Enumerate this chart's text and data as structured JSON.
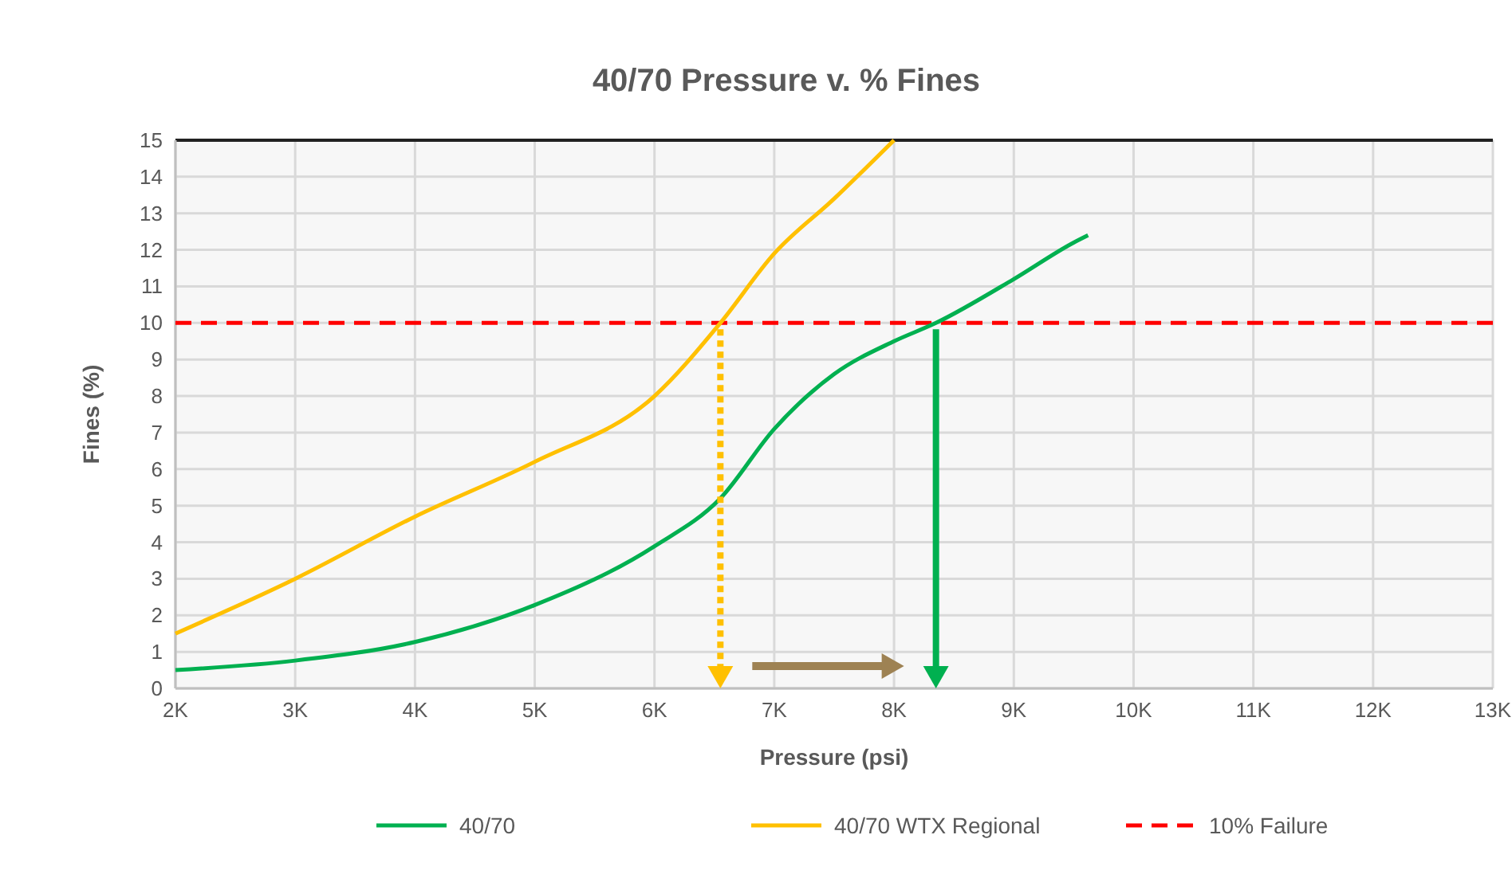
{
  "chart_data": {
    "type": "line",
    "title": "40/70 Pressure v. % Fines",
    "xlabel": "Pressure (psi)",
    "ylabel": "Fines (%)",
    "xlim": [
      2000,
      13000
    ],
    "xticks": [
      {
        "value": 2000,
        "label": "2K"
      },
      {
        "value": 3000,
        "label": "3K"
      },
      {
        "value": 4000,
        "label": "4K"
      },
      {
        "value": 5000,
        "label": "5K"
      },
      {
        "value": 6000,
        "label": "6K"
      },
      {
        "value": 7000,
        "label": "7K"
      },
      {
        "value": 8000,
        "label": "8K"
      },
      {
        "value": 9000,
        "label": "9K"
      },
      {
        "value": 10000,
        "label": "10K"
      },
      {
        "value": 11000,
        "label": "11K"
      },
      {
        "value": 12000,
        "label": "12K"
      },
      {
        "value": 13000,
        "label": "13K"
      }
    ],
    "ylim": [
      0,
      15
    ],
    "yticks": [
      0,
      1,
      2,
      3,
      4,
      5,
      6,
      7,
      8,
      9,
      10,
      11,
      12,
      13,
      14,
      15
    ],
    "series": [
      {
        "name": "40/70",
        "color": "#00b050",
        "x": [
          2000,
          3000,
          4000,
          5000,
          6000,
          6550,
          7000,
          7500,
          8000,
          8350,
          9000,
          9500,
          9620
        ],
        "values": [
          0.5,
          0.76,
          1.27,
          2.28,
          3.89,
          5.2,
          7.1,
          8.6,
          9.5,
          10,
          11.2,
          12.2,
          12.4
        ]
      },
      {
        "name": "40/70 WTX Regional",
        "color": "#ffc000",
        "x": [
          2000,
          3000,
          4000,
          5000,
          6000,
          6550,
          7000,
          7500,
          8000
        ],
        "values": [
          1.5,
          3,
          4.7,
          6.2,
          8,
          10,
          11.9,
          13.4,
          15
        ]
      }
    ],
    "ref_lines": [
      {
        "axis": "y",
        "value": 10,
        "label": "10% Failure",
        "color": "#ff0000",
        "line_style": "dashed"
      }
    ],
    "grid": true,
    "legend": "bottom",
    "line_style": "solid",
    "marker": "none"
  }
}
